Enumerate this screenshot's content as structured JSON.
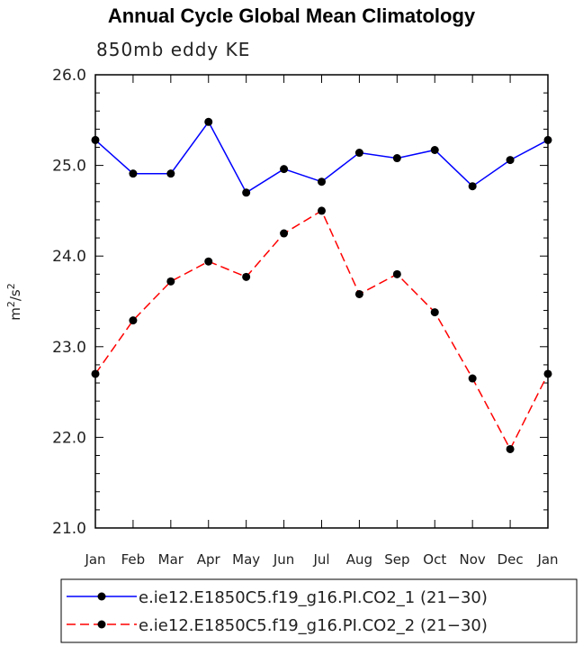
{
  "chart_data": {
    "type": "line",
    "title": "Annual Cycle Global Mean Climatology",
    "subtitle": "850mb eddy KE",
    "ylabel_base": "m",
    "ylabel_sup1": "2",
    "ylabel_mid": "/s",
    "ylabel_sup2": "2",
    "ylim": [
      21.0,
      26.0
    ],
    "yticks": [
      "21.0",
      "22.0",
      "23.0",
      "24.0",
      "25.0",
      "26.0"
    ],
    "categories": [
      "Jan",
      "Feb",
      "Mar",
      "Apr",
      "May",
      "Jun",
      "Jul",
      "Aug",
      "Sep",
      "Oct",
      "Nov",
      "Dec",
      "Jan"
    ],
    "grid": false,
    "legend_position": "bottom",
    "series": [
      {
        "name": "e.ie12.E1850C5.f19_g16.PI.CO2_1 (21−30)",
        "color": "#0000ff",
        "dash": "solid",
        "values": [
          25.28,
          24.91,
          24.91,
          25.48,
          24.7,
          24.96,
          24.82,
          25.14,
          25.08,
          25.17,
          24.77,
          25.06,
          25.28
        ]
      },
      {
        "name": "e.ie12.E1850C5.f19_g16.PI.CO2_2 (21−30)",
        "color": "#ff0000",
        "dash": "dashed",
        "values": [
          22.7,
          23.29,
          23.72,
          23.94,
          23.77,
          24.25,
          24.5,
          23.58,
          23.8,
          23.38,
          22.65,
          21.87,
          22.7
        ]
      }
    ]
  }
}
